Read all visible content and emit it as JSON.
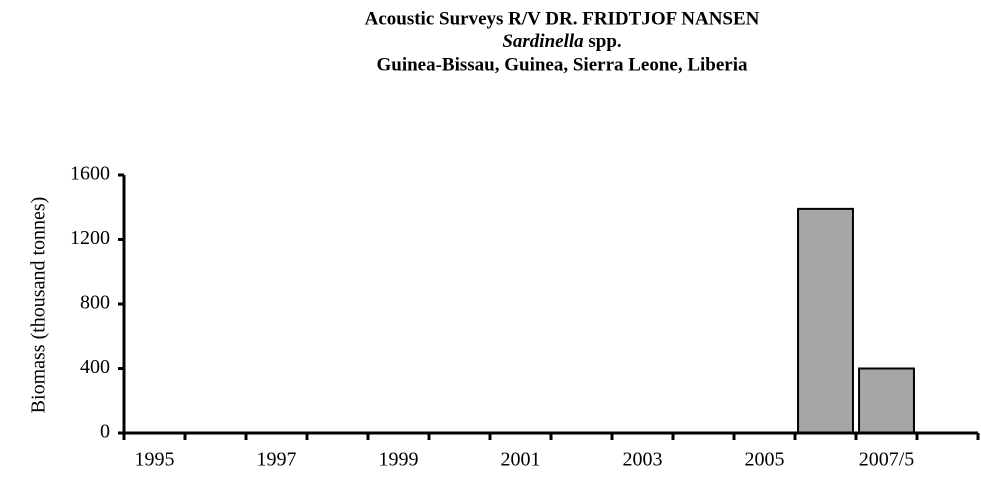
{
  "chart_data": {
    "type": "bar",
    "title": [
      "Acoustic Surveys R/V DR. FRIDTJOF NANSEN",
      "Sardinella",
      "spp.",
      "Guinea-Bissau, Guinea, Sierra Leone, Liberia"
    ],
    "y_label": "Biomass (thousand tonnes)",
    "categories": [
      "1995",
      null,
      "1997",
      null,
      "1999",
      null,
      "2001",
      null,
      "2003",
      null,
      "2005",
      null,
      "2007/5",
      null
    ],
    "values": [
      null,
      null,
      null,
      null,
      null,
      null,
      null,
      null,
      null,
      null,
      null,
      1390,
      400,
      null
    ],
    "color": "#a6a6a6",
    "ylim": [
      0,
      1600
    ],
    "yticks": [
      0,
      400,
      800,
      1200,
      1600
    ],
    "grid": false
  }
}
